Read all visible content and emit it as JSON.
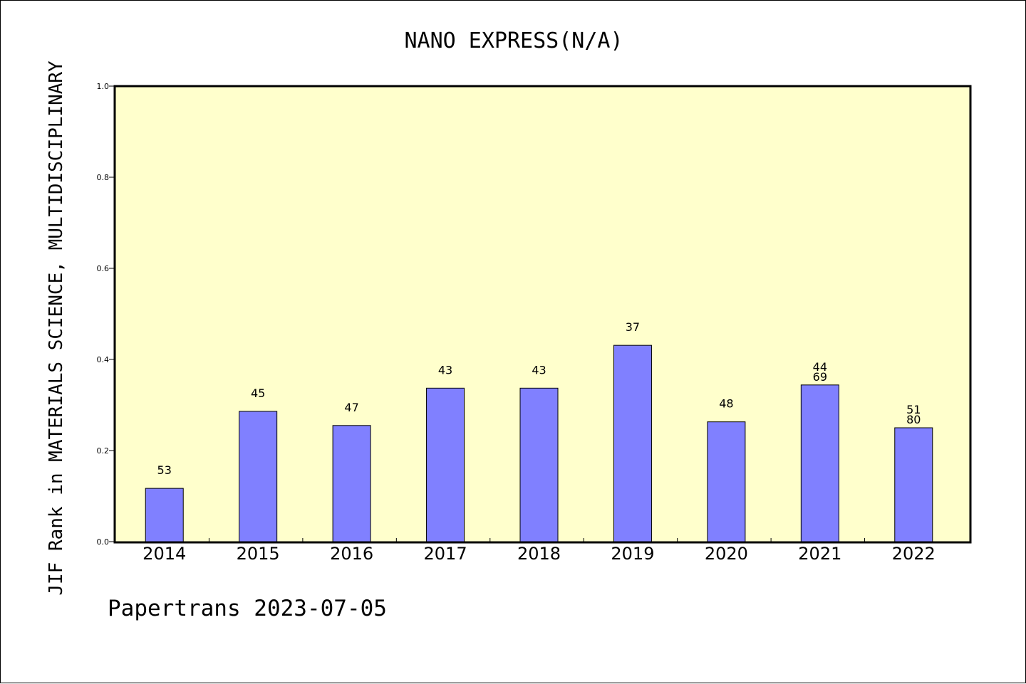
{
  "chart_data": {
    "type": "bar",
    "title": "NANO EXPRESS(N/A)",
    "xlabel": "",
    "ylabel": "JIF Rank in MATERIALS SCIENCE, MULTIDISCIPLINARY",
    "ylim": [
      0,
      1.0
    ],
    "yticks": [
      "0.0",
      "0.2",
      "0.4",
      "0.6",
      "0.8",
      "1.0"
    ],
    "ytick_values": [
      0.0,
      0.2,
      0.4,
      0.6,
      0.8,
      1.0
    ],
    "categories": [
      "2014",
      "2015",
      "2016",
      "2017",
      "2018",
      "2019",
      "2020",
      "2021",
      "2022"
    ],
    "series": [
      {
        "values": [
          0.117,
          0.286,
          0.255,
          0.337,
          0.337,
          0.431,
          0.263,
          0.344,
          0.25
        ],
        "labels": [
          [
            "53"
          ],
          [
            "45"
          ],
          [
            "47"
          ],
          [
            "43"
          ],
          [
            "43"
          ],
          [
            "37"
          ],
          [
            "48"
          ],
          [
            "44",
            "69"
          ],
          [
            "51",
            "80"
          ]
        ]
      }
    ],
    "grid": false,
    "colors": {
      "plot_background": "#ffffcc",
      "bar_fill": "#8080ff",
      "bar_stroke": "#000000"
    }
  },
  "footer": {
    "text": "Papertrans 2023-07-05"
  }
}
